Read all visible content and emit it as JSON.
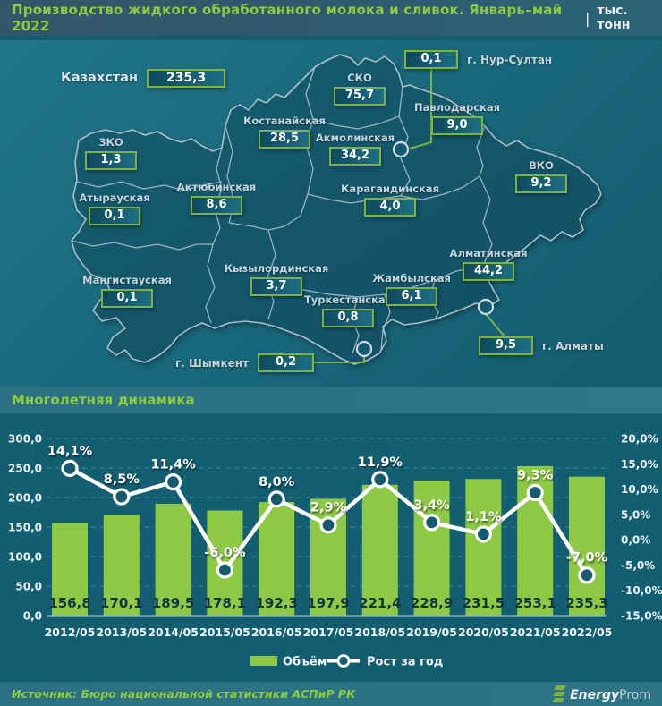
{
  "title": {
    "text": "Производство жидкого обработанного молока и сливок. Январь–май 2022",
    "separator": "|",
    "unit": "тыс. тонн"
  },
  "map": {
    "country": {
      "name": "Казахстан",
      "value": "235,3"
    },
    "regions": [
      {
        "name": "ЗКО",
        "value": "1,3"
      },
      {
        "name": "Атырауская",
        "value": "0,1"
      },
      {
        "name": "Мангистауская",
        "value": "0,1"
      },
      {
        "name": "Актюбинская",
        "value": "8,6"
      },
      {
        "name": "Костанайская",
        "value": "28,5"
      },
      {
        "name": "СКО",
        "value": "75,7"
      },
      {
        "name": "Акмолинская",
        "value": "34,2"
      },
      {
        "name": "Павлодарская",
        "value": "9,0"
      },
      {
        "name": "Карагандинская",
        "value": "4,0"
      },
      {
        "name": "ВКО",
        "value": "9,2"
      },
      {
        "name": "Кызылординская",
        "value": "3,7"
      },
      {
        "name": "Туркестанская",
        "value": "0,8"
      },
      {
        "name": "Жамбылская",
        "value": "6,1"
      },
      {
        "name": "Алматинская",
        "value": "44,2"
      }
    ],
    "cities": [
      {
        "name": "г. Нур-Султан",
        "value": "0,1"
      },
      {
        "name": "г. Алматы",
        "value": "9,5"
      },
      {
        "name": "г. Шымкент",
        "value": "0,2"
      }
    ]
  },
  "section2": {
    "heading": "Многолетняя динамика"
  },
  "chart_data": {
    "type": "bar+line",
    "categories": [
      "2012/05",
      "2013/05",
      "2014/05",
      "2015/05",
      "2016/05",
      "2017/05",
      "2018/05",
      "2019/05",
      "2020/05",
      "2021/05",
      "2022/05"
    ],
    "series": [
      {
        "name": "Объём",
        "type": "bar",
        "color": "#8dc945",
        "values": [
          156.8,
          170.1,
          189.5,
          178.1,
          192.3,
          197.9,
          221.4,
          228.9,
          231.5,
          253.1,
          235.3
        ],
        "labels": [
          "156,8",
          "170,1",
          "189,5",
          "178,1",
          "192,3",
          "197,9",
          "221,4",
          "228,9",
          "231,5",
          "253,1",
          "235,3"
        ]
      },
      {
        "name": "Рост за год",
        "type": "line",
        "color": "#ffffff",
        "values": [
          14.1,
          8.5,
          11.4,
          -6.0,
          8.0,
          2.9,
          11.9,
          3.4,
          1.1,
          9.3,
          -7.0
        ],
        "labels": [
          "14,1%",
          "8,5%",
          "11,4%",
          "-6,0%",
          "8,0%",
          "2,9%",
          "11,9%",
          "3,4%",
          "1,1%",
          "9,3%",
          "-7,0%"
        ]
      }
    ],
    "left_axis": {
      "min": 0,
      "max": 300,
      "ticks": [
        {
          "label": "300,0",
          "value": 300
        },
        {
          "label": "250,0",
          "value": 250
        },
        {
          "label": "200,0",
          "value": 200
        },
        {
          "label": "150,0",
          "value": 150
        },
        {
          "label": "100,0",
          "value": 100
        },
        {
          "label": "50,0",
          "value": 50
        },
        {
          "label": "0,0",
          "value": 0
        }
      ]
    },
    "right_axis": {
      "min": -15,
      "max": 20,
      "ticks": [
        {
          "label": "20,0%",
          "value": 20
        },
        {
          "label": "15,0%",
          "value": 15
        },
        {
          "label": "10,0%",
          "value": 10
        },
        {
          "label": "5,0%",
          "value": 5
        },
        {
          "label": "0,0%",
          "value": 0
        },
        {
          "label": "-5,0%",
          "value": -5
        },
        {
          "label": "-10,0%",
          "value": -10
        },
        {
          "label": "-15,0%",
          "value": -15
        }
      ]
    },
    "legend": [
      {
        "label": "Объём",
        "type": "bar"
      },
      {
        "label": "Рост за год",
        "type": "line"
      }
    ],
    "grid": "dashed horizontal",
    "legend_position": "bottom-center"
  },
  "footer": {
    "source": "Источник: Бюро национальной статистики АСПиР РК",
    "logo": {
      "bold": "Energy",
      "light": "Prom"
    }
  },
  "colors": {
    "accent_green": "#8ecb3f",
    "box_border_green": "#7cb342",
    "bar_green": "#8dc945",
    "map_bg": "#1a6a7d",
    "land_fill": "#14586c",
    "line_white": "#ffffff",
    "marker_fill": "#155a6e",
    "grid_blue": "#4a93a8",
    "bar_label_dark": "#16323e"
  }
}
